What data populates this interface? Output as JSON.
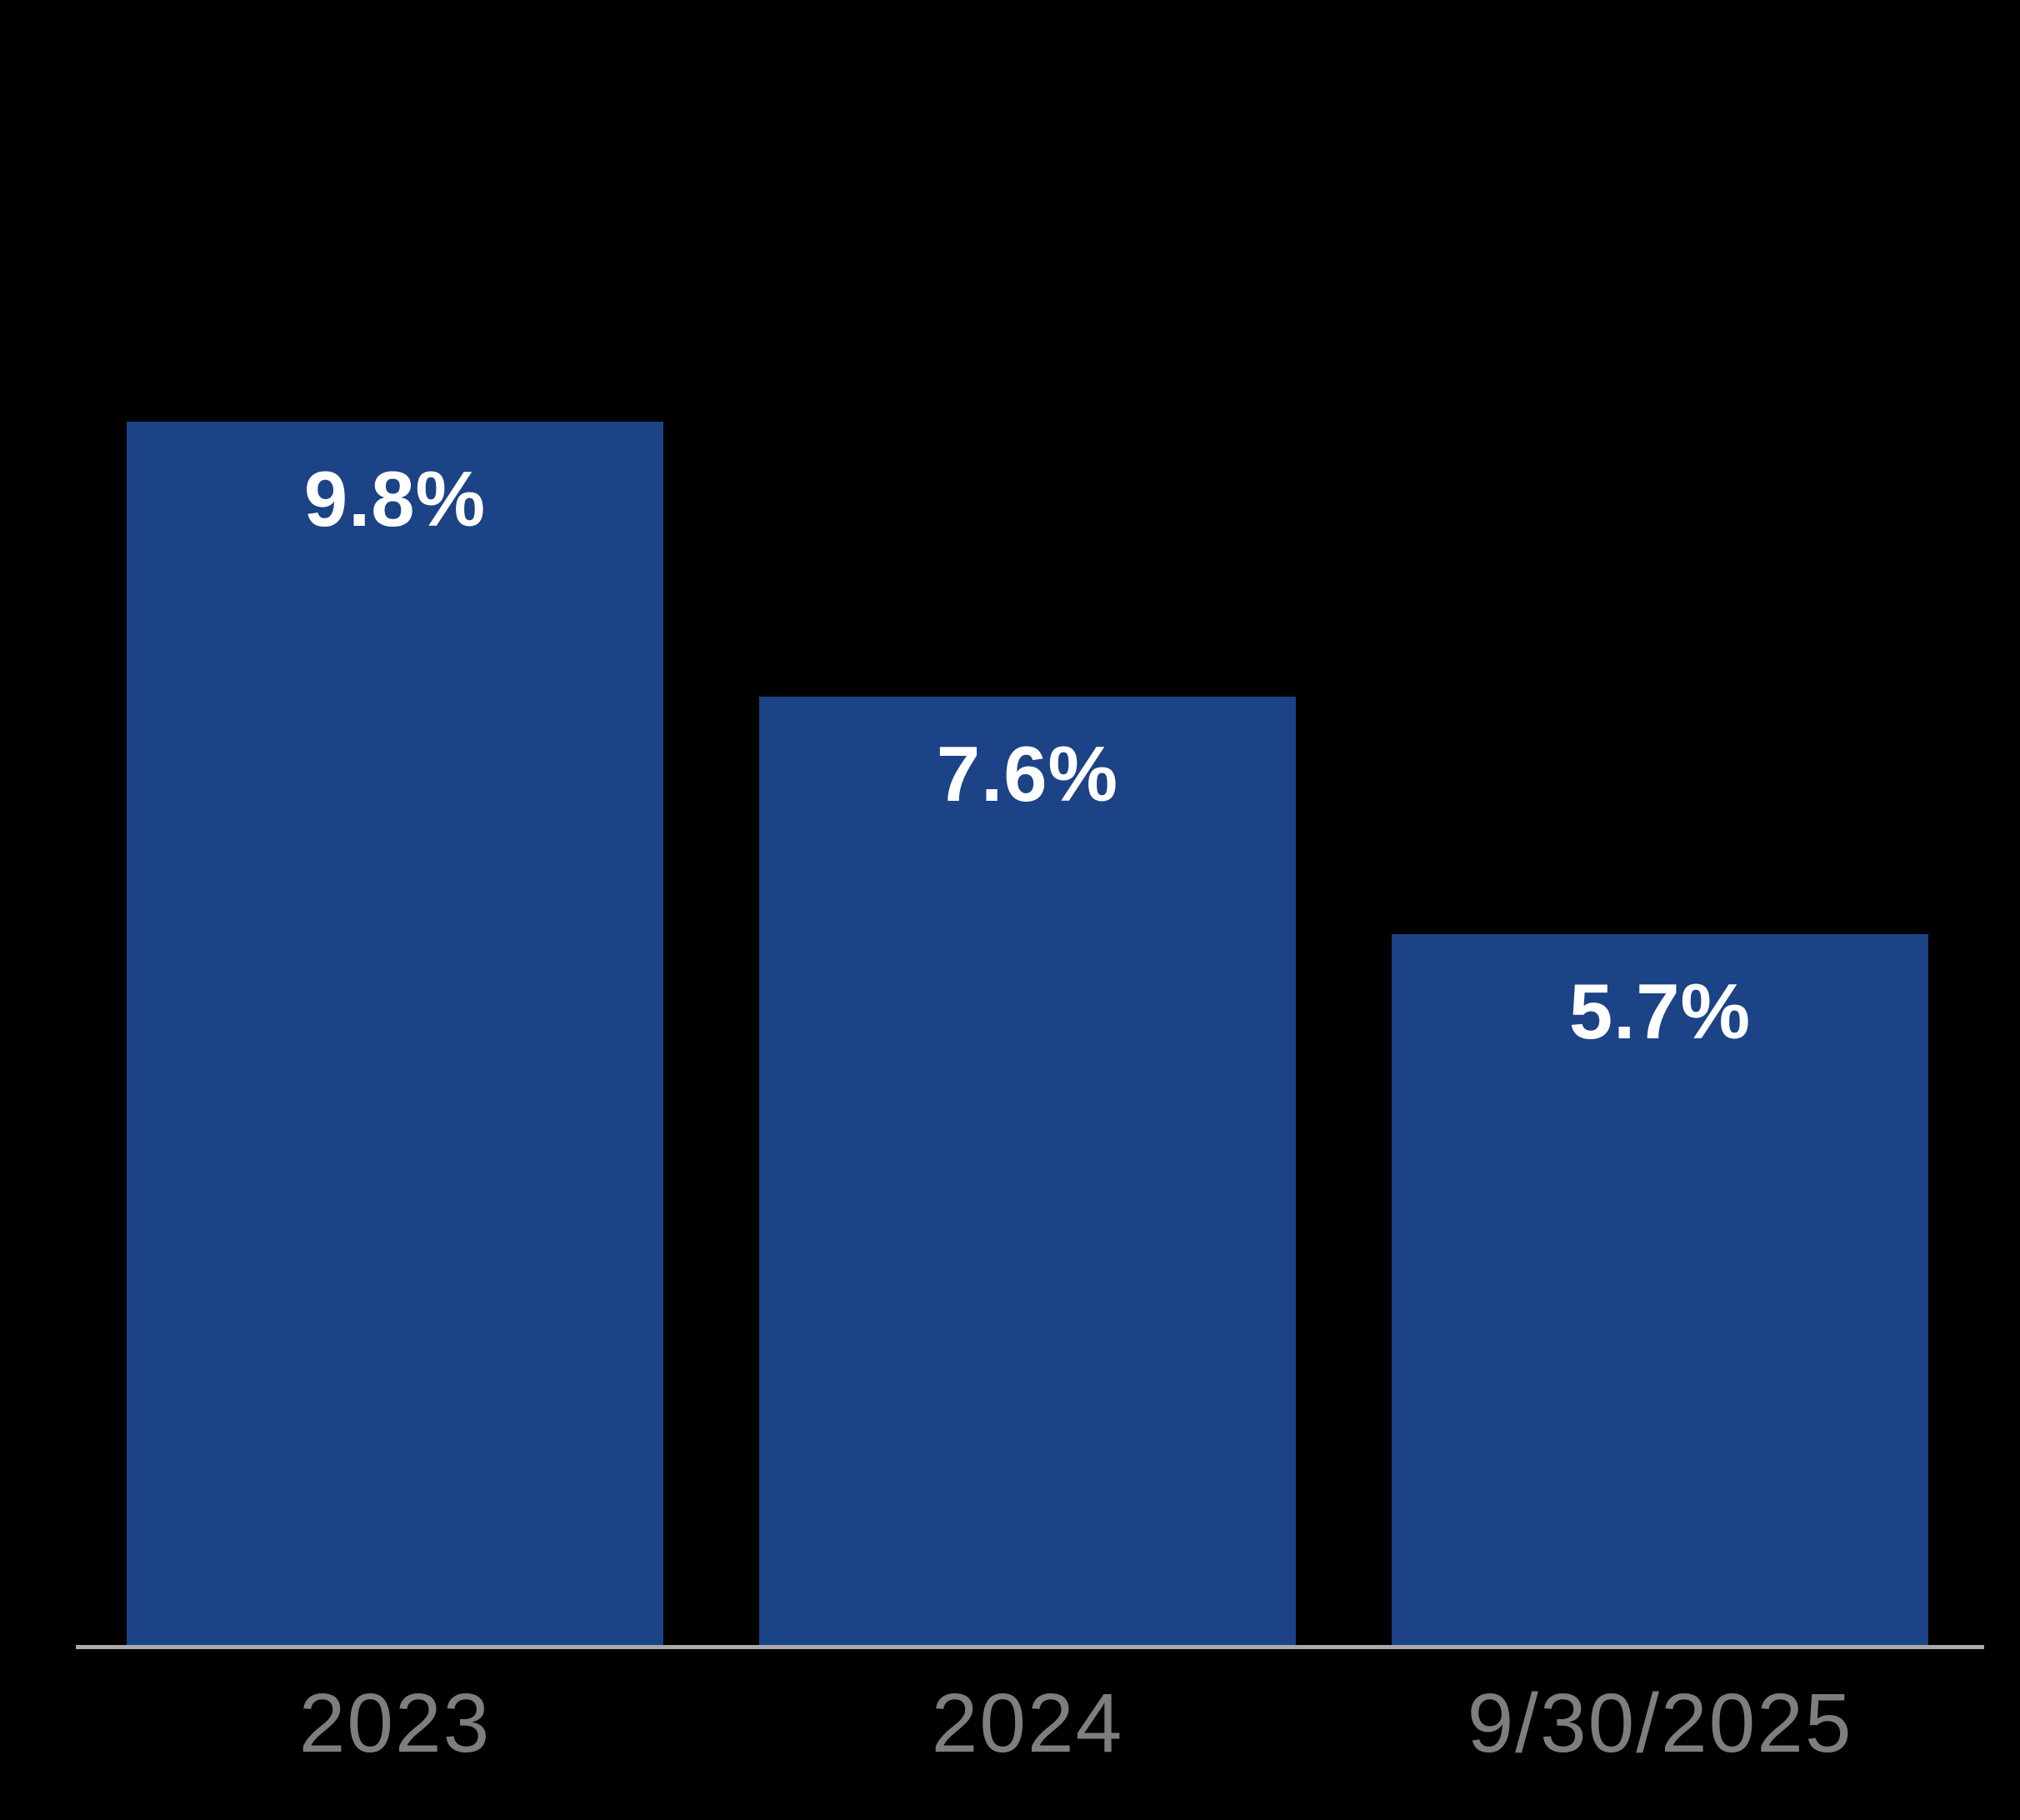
{
  "chart_data": {
    "type": "bar",
    "categories": [
      "2023",
      "2024",
      "9/30/2025"
    ],
    "values": [
      9.8,
      7.6,
      5.7
    ],
    "value_labels": [
      "9.8%",
      "7.6%",
      "5.7%"
    ],
    "title": "",
    "xlabel": "",
    "ylabel": "",
    "ylim": [
      0,
      13.2
    ],
    "grid": false,
    "legend": false,
    "value_label_position": "inside-top",
    "bar_color": "#1b4385",
    "value_label_color": "#ffffff",
    "tick_label_color": "#7e7e7e",
    "axis_line_color": "#aaaaaa",
    "background_color": "#000000"
  }
}
